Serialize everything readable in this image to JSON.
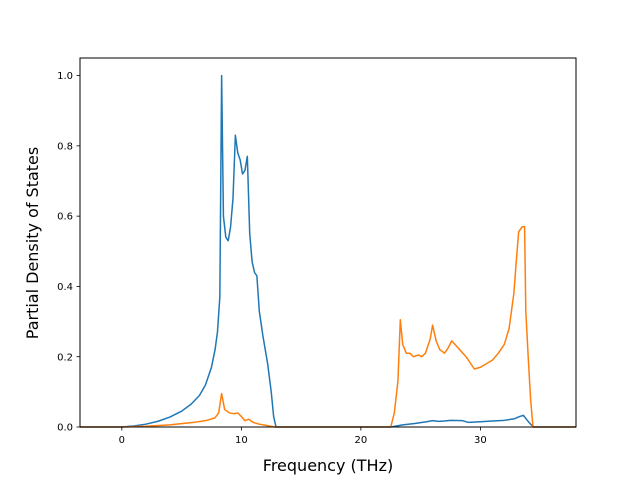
{
  "chart_data": {
    "type": "line",
    "title": "",
    "xlabel": "Frequency (THz)",
    "ylabel": "Partial Density of States",
    "xlim": [
      -3.5,
      38.0
    ],
    "ylim": [
      0.0,
      1.05
    ],
    "grid": false,
    "legend": "none",
    "xticks": [
      0,
      10,
      20,
      30
    ],
    "xtick_labels": [
      "0",
      "10",
      "20",
      "30"
    ],
    "yticks": [
      0.0,
      0.2,
      0.4,
      0.6,
      0.8,
      1.0
    ],
    "ytick_labels": [
      "0.0",
      "0.2",
      "0.4",
      "0.6",
      "0.8",
      "1.0"
    ],
    "series": [
      {
        "color": "#1f77b4",
        "points": [
          [
            -3.5,
            0.0
          ],
          [
            0.0,
            0.0
          ],
          [
            1.0,
            0.003
          ],
          [
            2.0,
            0.008
          ],
          [
            3.0,
            0.016
          ],
          [
            4.0,
            0.028
          ],
          [
            5.0,
            0.045
          ],
          [
            5.8,
            0.065
          ],
          [
            6.5,
            0.09
          ],
          [
            7.0,
            0.12
          ],
          [
            7.5,
            0.17
          ],
          [
            7.8,
            0.22
          ],
          [
            8.0,
            0.27
          ],
          [
            8.2,
            0.37
          ],
          [
            8.35,
            1.0
          ],
          [
            8.5,
            0.6
          ],
          [
            8.7,
            0.54
          ],
          [
            8.9,
            0.53
          ],
          [
            9.1,
            0.57
          ],
          [
            9.3,
            0.65
          ],
          [
            9.5,
            0.83
          ],
          [
            9.7,
            0.78
          ],
          [
            9.9,
            0.76
          ],
          [
            10.1,
            0.72
          ],
          [
            10.3,
            0.73
          ],
          [
            10.5,
            0.77
          ],
          [
            10.7,
            0.55
          ],
          [
            10.9,
            0.47
          ],
          [
            11.1,
            0.44
          ],
          [
            11.3,
            0.43
          ],
          [
            11.5,
            0.33
          ],
          [
            11.8,
            0.26
          ],
          [
            12.2,
            0.18
          ],
          [
            12.5,
            0.1
          ],
          [
            12.7,
            0.03
          ],
          [
            12.9,
            0.0
          ],
          [
            22.5,
            0.0
          ],
          [
            23.5,
            0.006
          ],
          [
            24.5,
            0.01
          ],
          [
            25.5,
            0.015
          ],
          [
            26.0,
            0.018
          ],
          [
            26.5,
            0.016
          ],
          [
            27.0,
            0.017
          ],
          [
            27.5,
            0.019
          ],
          [
            28.5,
            0.018
          ],
          [
            29.0,
            0.013
          ],
          [
            30.0,
            0.015
          ],
          [
            31.0,
            0.017
          ],
          [
            32.0,
            0.019
          ],
          [
            32.8,
            0.023
          ],
          [
            33.3,
            0.03
          ],
          [
            33.6,
            0.033
          ],
          [
            33.9,
            0.02
          ],
          [
            34.2,
            0.008
          ],
          [
            34.5,
            0.0
          ],
          [
            38.0,
            0.0
          ]
        ]
      },
      {
        "color": "#ff7f0e",
        "points": [
          [
            -3.5,
            0.0
          ],
          [
            0.0,
            0.0
          ],
          [
            2.0,
            0.002
          ],
          [
            4.0,
            0.006
          ],
          [
            6.0,
            0.013
          ],
          [
            7.0,
            0.018
          ],
          [
            7.8,
            0.026
          ],
          [
            8.1,
            0.04
          ],
          [
            8.35,
            0.095
          ],
          [
            8.6,
            0.05
          ],
          [
            9.0,
            0.04
          ],
          [
            9.4,
            0.038
          ],
          [
            9.7,
            0.04
          ],
          [
            10.0,
            0.03
          ],
          [
            10.3,
            0.018
          ],
          [
            10.6,
            0.022
          ],
          [
            11.0,
            0.013
          ],
          [
            11.5,
            0.008
          ],
          [
            12.0,
            0.005
          ],
          [
            12.8,
            0.0
          ],
          [
            22.5,
            0.0
          ],
          [
            22.8,
            0.04
          ],
          [
            23.1,
            0.13
          ],
          [
            23.3,
            0.305
          ],
          [
            23.5,
            0.235
          ],
          [
            23.8,
            0.21
          ],
          [
            24.1,
            0.21
          ],
          [
            24.4,
            0.2
          ],
          [
            24.8,
            0.205
          ],
          [
            25.1,
            0.2
          ],
          [
            25.4,
            0.21
          ],
          [
            25.8,
            0.25
          ],
          [
            26.0,
            0.29
          ],
          [
            26.3,
            0.245
          ],
          [
            26.6,
            0.22
          ],
          [
            27.0,
            0.21
          ],
          [
            27.3,
            0.225
          ],
          [
            27.6,
            0.245
          ],
          [
            28.0,
            0.23
          ],
          [
            28.4,
            0.215
          ],
          [
            28.8,
            0.2
          ],
          [
            29.2,
            0.18
          ],
          [
            29.5,
            0.165
          ],
          [
            30.0,
            0.17
          ],
          [
            30.5,
            0.18
          ],
          [
            31.0,
            0.19
          ],
          [
            31.5,
            0.21
          ],
          [
            32.0,
            0.235
          ],
          [
            32.4,
            0.28
          ],
          [
            32.8,
            0.38
          ],
          [
            33.0,
            0.47
          ],
          [
            33.2,
            0.555
          ],
          [
            33.5,
            0.57
          ],
          [
            33.7,
            0.57
          ],
          [
            33.8,
            0.33
          ],
          [
            34.0,
            0.2
          ],
          [
            34.2,
            0.08
          ],
          [
            34.4,
            0.0
          ],
          [
            38.0,
            0.0
          ]
        ]
      }
    ]
  }
}
